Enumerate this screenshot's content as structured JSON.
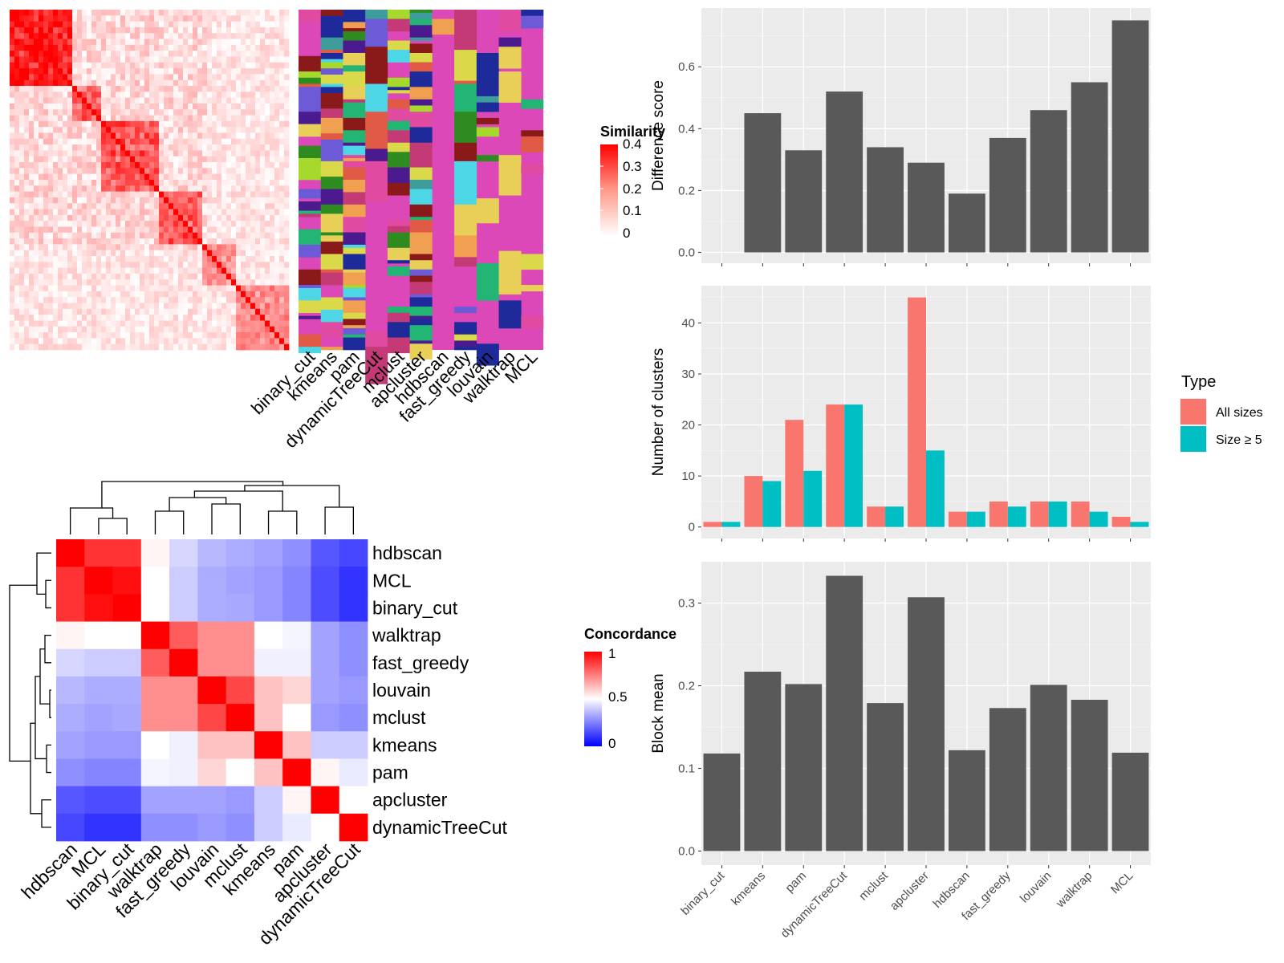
{
  "chart_data": [
    {
      "type": "heatmap",
      "legend": {
        "title": "Similarity",
        "ticks": [
          "0.4",
          "0.3",
          "0.2",
          "0.1",
          "0"
        ]
      },
      "column_labels": [
        "binary_cut",
        "kmeans",
        "pam",
        "dynamicTreeCut",
        "mclust",
        "apcluster",
        "hdbscan",
        "fast_greedy",
        "louvain",
        "walktrap",
        "MCL"
      ]
    },
    {
      "type": "heatmap",
      "legend": {
        "title": "Concordance",
        "ticks": [
          "1",
          "0.5",
          "0"
        ]
      },
      "row_labels": [
        "hdbscan",
        "MCL",
        "binary_cut",
        "walktrap",
        "fast_greedy",
        "louvain",
        "mclust",
        "kmeans",
        "pam",
        "apcluster",
        "dynamicTreeCut"
      ],
      "column_labels": [
        "hdbscan",
        "MCL",
        "binary_cut",
        "walktrap",
        "fast_greedy",
        "louvain",
        "mclust",
        "kmeans",
        "pam",
        "apcluster",
        "dynamicTreeCut"
      ],
      "values": [
        [
          1.0,
          0.9,
          0.9,
          0.52,
          0.42,
          0.36,
          0.34,
          0.32,
          0.28,
          0.17,
          0.14
        ],
        [
          0.9,
          1.0,
          0.97,
          0.5,
          0.4,
          0.34,
          0.32,
          0.3,
          0.26,
          0.15,
          0.1
        ],
        [
          0.9,
          0.97,
          1.0,
          0.5,
          0.4,
          0.34,
          0.33,
          0.3,
          0.26,
          0.15,
          0.1
        ],
        [
          0.52,
          0.5,
          0.5,
          1.0,
          0.82,
          0.72,
          0.72,
          0.5,
          0.48,
          0.32,
          0.28
        ],
        [
          0.42,
          0.4,
          0.4,
          0.82,
          1.0,
          0.72,
          0.72,
          0.47,
          0.47,
          0.32,
          0.28
        ],
        [
          0.36,
          0.34,
          0.34,
          0.72,
          0.72,
          1.0,
          0.86,
          0.62,
          0.58,
          0.32,
          0.3
        ],
        [
          0.34,
          0.32,
          0.33,
          0.72,
          0.72,
          0.86,
          1.0,
          0.62,
          0.5,
          0.3,
          0.28
        ],
        [
          0.32,
          0.3,
          0.3,
          0.5,
          0.47,
          0.62,
          0.62,
          1.0,
          0.62,
          0.4,
          0.4
        ],
        [
          0.28,
          0.26,
          0.26,
          0.48,
          0.47,
          0.58,
          0.5,
          0.62,
          1.0,
          0.52,
          0.46
        ],
        [
          0.17,
          0.15,
          0.15,
          0.32,
          0.32,
          0.32,
          0.3,
          0.4,
          0.52,
          1.0,
          0.5
        ],
        [
          0.14,
          0.1,
          0.1,
          0.28,
          0.28,
          0.3,
          0.28,
          0.4,
          0.46,
          0.5,
          1.0
        ]
      ]
    },
    {
      "type": "bar",
      "ylabel": "Difference score",
      "categories": [
        "binary_cut",
        "kmeans",
        "pam",
        "dynamicTreeCut",
        "mclust",
        "apcluster",
        "hdbscan",
        "fast_greedy",
        "louvain",
        "walktrap",
        "MCL"
      ],
      "values": [
        0.0,
        0.45,
        0.33,
        0.52,
        0.34,
        0.29,
        0.19,
        0.37,
        0.46,
        0.55,
        0.75
      ],
      "yticks": [
        "0.0",
        "0.2",
        "0.4",
        "0.6"
      ],
      "ylim": [
        -0.035,
        0.79
      ]
    },
    {
      "type": "bar",
      "ylabel": "Number of clusters",
      "categories": [
        "binary_cut",
        "kmeans",
        "pam",
        "dynamicTreeCut",
        "mclust",
        "apcluster",
        "hdbscan",
        "fast_greedy",
        "louvain",
        "walktrap",
        "MCL"
      ],
      "series": [
        {
          "name": "All sizes",
          "values": [
            1,
            10,
            21,
            24,
            4,
            45,
            3,
            5,
            5,
            5,
            2
          ],
          "color": "#F8766D"
        },
        {
          "name": "Size ≥ 5",
          "values": [
            1,
            9,
            11,
            24,
            4,
            15,
            3,
            4,
            5,
            3,
            1
          ],
          "color": "#00BFC4"
        }
      ],
      "yticks": [
        "0",
        "10",
        "20",
        "30",
        "40"
      ],
      "ylim": [
        -2.25,
        47.3
      ],
      "legend": {
        "title": "Type",
        "position": "right"
      }
    },
    {
      "type": "bar",
      "ylabel": "Block mean",
      "categories": [
        "binary_cut",
        "kmeans",
        "pam",
        "dynamicTreeCut",
        "mclust",
        "apcluster",
        "hdbscan",
        "fast_greedy",
        "louvain",
        "walktrap",
        "MCL"
      ],
      "values": [
        0.118,
        0.217,
        0.202,
        0.333,
        0.179,
        0.307,
        0.122,
        0.173,
        0.201,
        0.183,
        0.119
      ],
      "yticks": [
        "0.0",
        "0.1",
        "0.2",
        "0.3"
      ],
      "ylim": [
        -0.017,
        0.35
      ]
    }
  ]
}
